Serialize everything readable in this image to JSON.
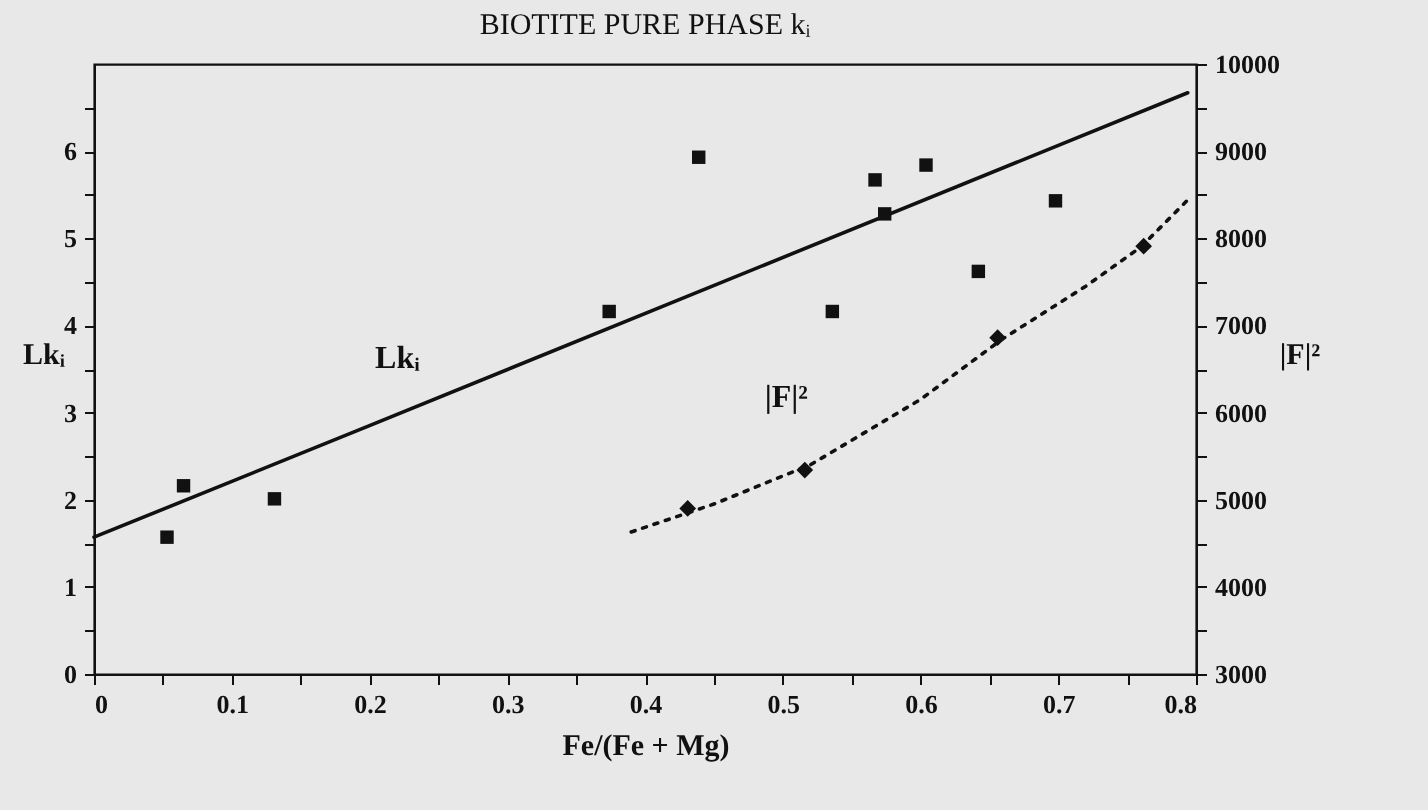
{
  "chart_data": {
    "type": "scatter",
    "title": "BIOTITE PURE PHASE kᵢ",
    "xlabel": "Fe/(Fe + Mg)",
    "ylabel": "Lkᵢ",
    "y2label": "|F|²",
    "xlim": [
      0,
      0.8
    ],
    "xticks": [
      0,
      {
        "value": 0.05,
        "label": null
      },
      0.1,
      {
        "value": 0.15,
        "label": null
      },
      0.2,
      {
        "value": 0.25,
        "label": null
      },
      0.3,
      {
        "value": 0.35,
        "label": null
      },
      0.4,
      {
        "value": 0.45,
        "label": null
      },
      0.5,
      {
        "value": 0.55,
        "label": null
      },
      0.6,
      {
        "value": 0.65,
        "label": null
      },
      0.7,
      {
        "value": 0.75,
        "label": null
      },
      0.8
    ],
    "ylim": [
      0,
      7
    ],
    "yticks": [
      0,
      {
        "value": 0.5,
        "label": null
      },
      1,
      {
        "value": 1.5,
        "label": null
      },
      2,
      {
        "value": 2.5,
        "label": null
      },
      3,
      {
        "value": 3.5,
        "label": null
      },
      4,
      {
        "value": 4.5,
        "label": null
      },
      5,
      {
        "value": 5.5,
        "label": null
      },
      6,
      {
        "value": 6.5,
        "label": null
      }
    ],
    "y2lim": [
      3000,
      10000
    ],
    "y2ticks": [
      3000,
      {
        "value": 3500,
        "label": null
      },
      4000,
      {
        "value": 4500,
        "label": null
      },
      5000,
      {
        "value": 5500,
        "label": null
      },
      6000,
      {
        "value": 6500,
        "label": null
      },
      7000,
      {
        "value": 7500,
        "label": null
      },
      8000,
      {
        "value": 8500,
        "label": null
      },
      9000,
      {
        "value": 9500,
        "label": null
      },
      10000
    ],
    "grid": false,
    "series": [
      {
        "type": "scatter",
        "marker": "square",
        "color": "#111111",
        "x": [
          0.053,
          0.065,
          0.131,
          0.374,
          0.439,
          0.536,
          0.567,
          0.574,
          0.604,
          0.642,
          0.698
        ],
        "values": [
          1.57,
          2.16,
          2.01,
          4.16,
          5.93,
          4.16,
          5.67,
          5.28,
          5.84,
          4.62,
          5.43
        ]
      },
      {
        "type": "line",
        "name": "Lkᵢ",
        "line_style": "solid",
        "color": "#111111",
        "x": [
          0,
          0.2,
          0.794
        ],
        "values": [
          1.57,
          2.85,
          6.67
        ]
      },
      {
        "type": "scatter",
        "marker": "diamond",
        "axis": "y2",
        "color": "#111111",
        "x": [
          0.431,
          0.516,
          0.656,
          0.762
        ],
        "values": [
          4900,
          5340,
          6860,
          7910
        ]
      },
      {
        "type": "line",
        "name": "|F|²",
        "line_style": "dotted",
        "axis": "y2",
        "color": "#111111",
        "x": [
          0.39,
          0.45,
          0.52,
          0.6,
          0.66,
          0.72,
          0.76,
          0.794
        ],
        "values": [
          4630,
          4950,
          5400,
          6150,
          6850,
          7450,
          7900,
          8440
        ]
      }
    ]
  }
}
